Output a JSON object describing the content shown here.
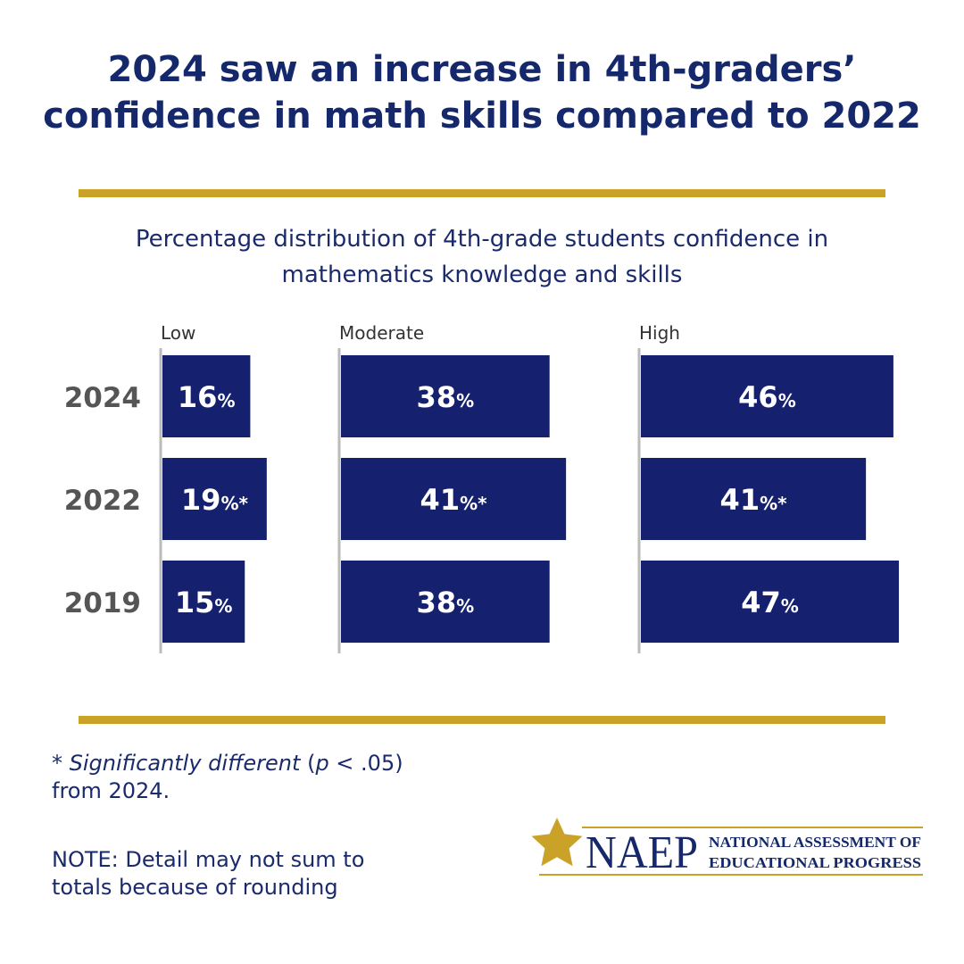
{
  "headline": {
    "line1": "2024 saw an increase in 4th-graders’",
    "line2": "confidence in math skills compared to 2022"
  },
  "subtitle": {
    "line1": "Percentage distribution of 4th-grade students confidence in",
    "line2": "mathematics knowledge and skills"
  },
  "colors": {
    "bar": "#15216f",
    "accent_rule": "#c9a227",
    "headline": "#15286b",
    "axis": "#bbbbbb",
    "year_label": "#555555"
  },
  "chart_data": {
    "type": "bar",
    "orientation": "horizontal",
    "layout": "small-multiples",
    "title": "Percentage distribution of 4th-grade students confidence in mathematics knowledge and skills",
    "categories": [
      "2024",
      "2022",
      "2019"
    ],
    "unit": "%",
    "significance_marker": "*",
    "panels": [
      {
        "name": "Low",
        "values": [
          16,
          19,
          15
        ],
        "significant": [
          false,
          true,
          false
        ]
      },
      {
        "name": "Moderate",
        "values": [
          38,
          41,
          38
        ],
        "significant": [
          false,
          true,
          false
        ]
      },
      {
        "name": "High",
        "values": [
          46,
          41,
          47
        ],
        "significant": [
          false,
          true,
          false
        ]
      }
    ]
  },
  "footnote": {
    "star": "* ",
    "sig_text": "Significantly different",
    "p_open": " (",
    "p_letter": "p",
    "p_rest": " < .05)",
    "line2": "from 2024."
  },
  "note": {
    "line1": "NOTE: Detail may not sum to",
    "line2": "totals because of rounding"
  },
  "logo": {
    "acronym": "NAEP",
    "line1": "NATIONAL ASSESSMENT OF",
    "line2": "EDUCATIONAL PROGRESS",
    "icon": "star-icon"
  }
}
